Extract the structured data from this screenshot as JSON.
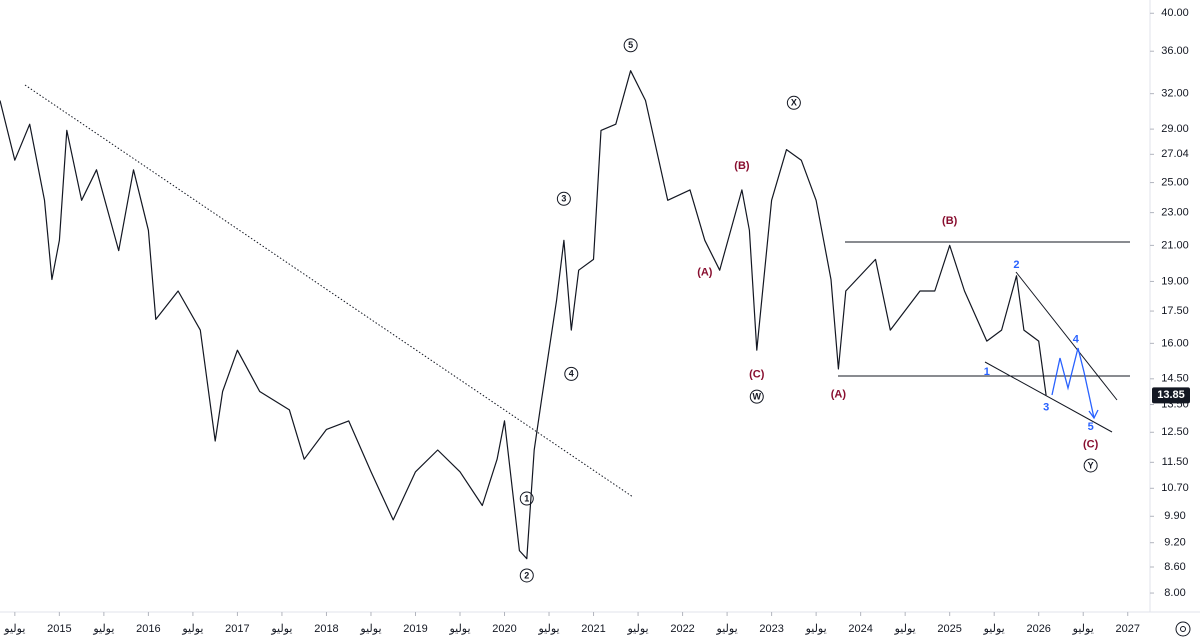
{
  "chart_data": {
    "type": "line",
    "color": "#131722",
    "log_scale": true,
    "grid": false,
    "x": [
      "2014-05",
      "2014-07",
      "2014-09",
      "2014-11",
      "2014-12",
      "2015-01",
      "2015-02",
      "2015-04",
      "2015-06",
      "2015-09",
      "2015-11",
      "2016-01",
      "2016-02",
      "2016-05",
      "2016-08",
      "2016-10",
      "2016-11",
      "2017-01",
      "2017-04",
      "2017-08",
      "2017-10",
      "2018-01",
      "2018-04",
      "2018-07",
      "2018-10",
      "2019-01",
      "2019-04",
      "2019-07",
      "2019-10",
      "2019-12",
      "2020-01",
      "2020-03",
      "2020-04",
      "2020-05",
      "2020-06",
      "2020-08",
      "2020-09",
      "2020-10",
      "2020-11",
      "2021-01",
      "2021-02",
      "2021-04",
      "2021-06",
      "2021-08",
      "2021-11",
      "2022-02",
      "2022-04",
      "2022-06",
      "2022-09",
      "2022-10",
      "2022-11",
      "2023-01",
      "2023-03",
      "2023-05",
      "2023-07",
      "2023-09",
      "2023-10",
      "2023-11",
      "2024-03",
      "2024-05",
      "2024-09",
      "2024-11",
      "2025-01",
      "2025-03",
      "2025-06",
      "2025-08",
      "2025-10",
      "2025-11",
      "2026-01",
      "2026-02"
    ],
    "values": [
      31.4,
      26.6,
      29.4,
      23.8,
      19.1,
      21.3,
      28.9,
      23.8,
      25.9,
      20.7,
      25.9,
      21.9,
      17.1,
      18.5,
      16.6,
      12.2,
      14.0,
      15.7,
      14.0,
      13.3,
      11.6,
      12.6,
      12.9,
      11.2,
      9.8,
      11.2,
      11.9,
      11.2,
      10.2,
      11.6,
      12.9,
      9.0,
      8.8,
      11.9,
      13.7,
      18.0,
      21.3,
      16.6,
      19.6,
      20.2,
      28.9,
      29.4,
      34.1,
      31.4,
      23.8,
      24.5,
      21.3,
      19.6,
      24.5,
      21.9,
      15.7,
      23.8,
      27.4,
      26.6,
      23.8,
      19.1,
      14.9,
      18.5,
      20.2,
      16.6,
      18.5,
      18.5,
      21.0,
      18.5,
      16.1,
      16.6,
      19.3,
      16.6,
      16.1,
      13.85
    ],
    "last_price": 13.85,
    "xlim": [
      "2014-05",
      "2027-04"
    ],
    "xticks": [
      {
        "value": "2014-07",
        "label": "يوليو"
      },
      {
        "value": "2015-01",
        "label": "2015"
      },
      {
        "value": "2015-07",
        "label": "يوليو"
      },
      {
        "value": "2016-01",
        "label": "2016"
      },
      {
        "value": "2016-07",
        "label": "يوليو"
      },
      {
        "value": "2017-01",
        "label": "2017"
      },
      {
        "value": "2017-07",
        "label": "يوليو"
      },
      {
        "value": "2018-01",
        "label": "2018"
      },
      {
        "value": "2018-07",
        "label": "يوليو"
      },
      {
        "value": "2019-01",
        "label": "2019"
      },
      {
        "value": "2019-07",
        "label": "يوليو"
      },
      {
        "value": "2020-01",
        "label": "2020"
      },
      {
        "value": "2020-07",
        "label": "يوليو"
      },
      {
        "value": "2021-01",
        "label": "2021"
      },
      {
        "value": "2021-07",
        "label": "يوليو"
      },
      {
        "value": "2022-01",
        "label": "2022"
      },
      {
        "value": "2022-07",
        "label": "يوليو"
      },
      {
        "value": "2023-01",
        "label": "2023"
      },
      {
        "value": "2023-07",
        "label": "يوليو"
      },
      {
        "value": "2024-01",
        "label": "2024"
      },
      {
        "value": "2024-07",
        "label": "يوليو"
      },
      {
        "value": "2025-01",
        "label": "2025"
      },
      {
        "value": "2025-07",
        "label": "يوليو"
      },
      {
        "value": "2026-01",
        "label": "2026"
      },
      {
        "value": "2026-07",
        "label": "يوليو"
      },
      {
        "value": "2027-01",
        "label": "2027"
      }
    ],
    "ylim": [
      7.59,
      41.5
    ],
    "yticks": [
      {
        "value": 8,
        "label": "8.00"
      },
      {
        "value": 8.6,
        "label": "8.60"
      },
      {
        "value": 9.2,
        "label": "9.20"
      },
      {
        "value": 9.9,
        "label": "9.90"
      },
      {
        "value": 10.7,
        "label": "10.70"
      },
      {
        "value": 11.5,
        "label": "11.50"
      },
      {
        "value": 12.5,
        "label": "12.50"
      },
      {
        "value": 13.5,
        "label": "13.50"
      },
      {
        "value": 14.5,
        "label": "14.50"
      },
      {
        "value": 16,
        "label": "16.00"
      },
      {
        "value": 17.5,
        "label": "17.50"
      },
      {
        "value": 19,
        "label": "19.00"
      },
      {
        "value": 21,
        "label": "21.00"
      },
      {
        "value": 23,
        "label": "23.00"
      },
      {
        "value": 25,
        "label": "25.00"
      },
      27.04,
      {
        "value": 29,
        "label": "29.00"
      },
      {
        "value": 32,
        "label": "32.00"
      },
      {
        "value": 36,
        "label": "36.00"
      },
      {
        "value": 40,
        "label": "40.00"
      }
    ],
    "annotations": [
      {
        "text": "5",
        "x": "2021-06",
        "y": 36.6,
        "color": "#131722",
        "circled": true
      },
      {
        "text": "3",
        "x": "2020-09",
        "y": 23.9,
        "color": "#131722",
        "circled": true
      },
      {
        "text": "4",
        "x": "2020-10",
        "y": 14.7,
        "color": "#131722",
        "circled": true
      },
      {
        "text": "1",
        "x": "2020-04",
        "y": 10.4,
        "color": "#131722",
        "circled": true
      },
      {
        "text": "2",
        "x": "2020-04",
        "y": 8.4,
        "color": "#131722",
        "circled": true
      },
      {
        "text": "X",
        "x": "2023-04",
        "y": 31.2,
        "color": "#131722",
        "circled": true
      },
      {
        "text": "W",
        "x": "2022-11",
        "y": 13.8,
        "color": "#131722",
        "circled": true
      },
      {
        "text": "Y",
        "x": "2026-08",
        "y": 11.4,
        "color": "#131722",
        "circled": true
      },
      {
        "text": "(B)",
        "x": "2022-09",
        "y": 26.2,
        "color": "#880e2f",
        "circled": false
      },
      {
        "text": "(A)",
        "x": "2022-04",
        "y": 19.5,
        "color": "#880e2f",
        "circled": false
      },
      {
        "text": "(C)",
        "x": "2022-11",
        "y": 14.7,
        "color": "#880e2f",
        "circled": false
      },
      {
        "text": "(B)",
        "x": "2025-01",
        "y": 22.5,
        "color": "#880e2f",
        "circled": false
      },
      {
        "text": "(A)",
        "x": "2023-10",
        "y": 13.9,
        "color": "#880e2f",
        "circled": false
      },
      {
        "text": "(C)",
        "x": "2026-08",
        "y": 12.1,
        "color": "#880e2f",
        "circled": false
      },
      {
        "text": "2",
        "x": "2025-10",
        "y": 19.9,
        "color": "#2962ff",
        "circled": false
      },
      {
        "text": "1",
        "x": "2025-06",
        "y": 14.8,
        "color": "#2962ff",
        "circled": false
      },
      {
        "text": "4",
        "x": "2026-06",
        "y": 16.2,
        "color": "#2962ff",
        "circled": false
      },
      {
        "text": "3",
        "x": "2026-02",
        "y": 13.4,
        "color": "#2962ff",
        "circled": false
      },
      {
        "text": "5",
        "x": "2026-08",
        "y": 12.7,
        "color": "#2962ff",
        "circled": false
      }
    ]
  }
}
